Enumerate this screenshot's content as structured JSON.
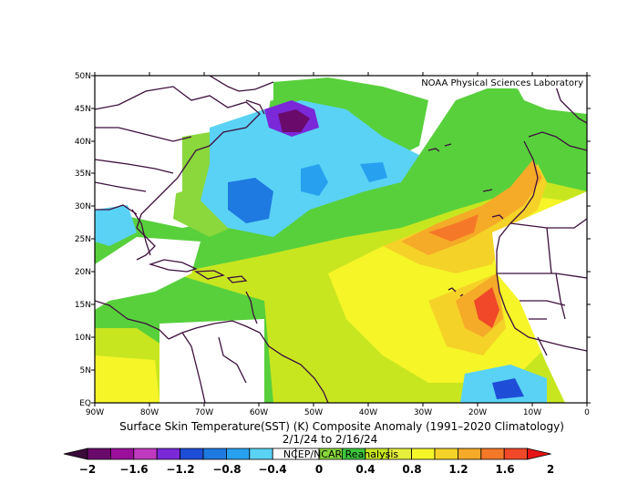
{
  "credit": "NOAA Physical Sciences Laboratory",
  "lat_labels": [
    "50N",
    "45N",
    "40N",
    "35N",
    "30N",
    "25N",
    "20N",
    "15N",
    "10N",
    "5N",
    "EQ"
  ],
  "lon_labels": [
    "90W",
    "80W",
    "70W",
    "60W",
    "50W",
    "40W",
    "30W",
    "20W",
    "10W",
    "0"
  ],
  "title_line1": "Surface Skin Temperature(SST) (K) Composite Anomaly (1991–2020 Climatology)",
  "title_line2": "2/1/24  to 2/16/24",
  "source": "NCEP/NCAR Reanalysis",
  "colorbar": {
    "tick_labels": [
      "−2",
      "−1.6",
      "−1.2",
      "−0.8",
      "−0.4",
      "0",
      "0.4",
      "0.8",
      "1.2",
      "1.6",
      "2"
    ],
    "colors": [
      "#3a0a3a",
      "#6a0a6a",
      "#9b109b",
      "#c03ac0",
      "#7a28d8",
      "#1e4ed8",
      "#1e7ae0",
      "#28a0f0",
      "#5ad2f5",
      "#ffffff",
      "#ffffff",
      "#8ad83c",
      "#3cc83c",
      "#c8e620",
      "#e6f03c",
      "#f5f528",
      "#f5d228",
      "#f5aa28",
      "#f57828",
      "#f04828",
      "#e61414"
    ]
  },
  "colors": {
    "land_border": "#3d0f3d",
    "frame": "#000000"
  }
}
